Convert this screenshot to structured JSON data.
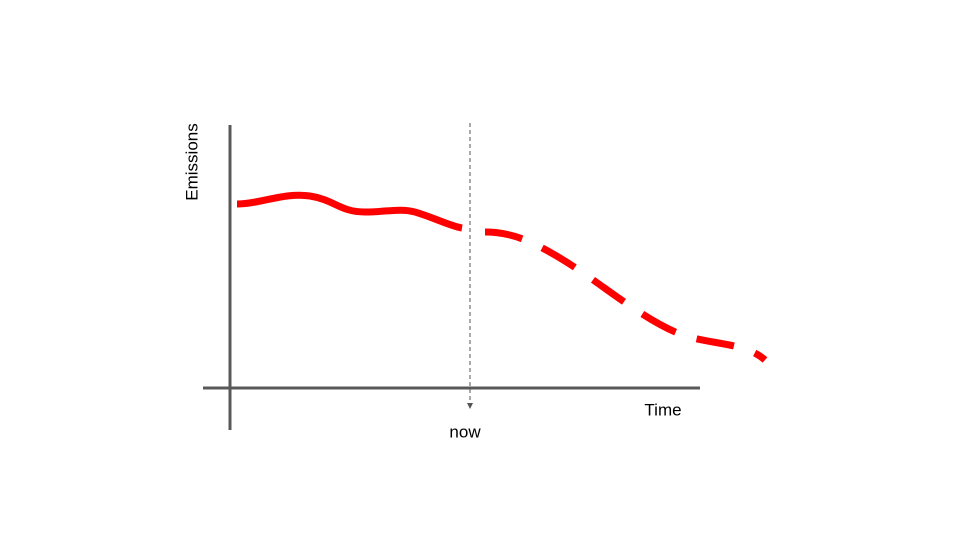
{
  "axes": {
    "y_label": "Emissions",
    "x_label": "Time"
  },
  "marker": {
    "label": "now"
  }
}
